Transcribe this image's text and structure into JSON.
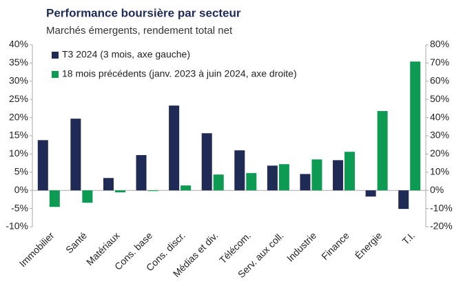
{
  "chart_data": {
    "type": "bar",
    "title": "Performance boursière par secteur",
    "subtitle": "Marchés émergents, rendement total net",
    "categories": [
      "Immobilier",
      "Santé",
      "Matériaux",
      "Cons. base",
      "Cons. discr.",
      "Médias et div.",
      "Télécom.",
      "Serv. aux coll.",
      "Industrie",
      "Finance",
      "Énergie",
      "T.I."
    ],
    "series": [
      {
        "name": "T3 2024 (3 mois, axe gauche)",
        "color": "#1f2a55",
        "axis": "y",
        "values": [
          13.8,
          19.7,
          3.4,
          9.7,
          23.3,
          15.7,
          11.0,
          6.8,
          4.5,
          8.3,
          -1.7,
          -5.1
        ]
      },
      {
        "name": "18 mois précédents (janv. 2023 à juin 2024, axe droite)",
        "color": "#0d9a52",
        "axis": "y2",
        "values": [
          -9.1,
          -6.8,
          -1.1,
          -0.4,
          2.7,
          8.7,
          9.5,
          14.4,
          17.0,
          21.2,
          43.6,
          70.8
        ]
      }
    ],
    "ylim": [
      -10,
      40
    ],
    "yticks": [
      {
        "value": -10,
        "label": "-10%"
      },
      {
        "value": -5,
        "label": "-5%"
      },
      {
        "value": 0,
        "label": "0%"
      },
      {
        "value": 5,
        "label": "5%"
      },
      {
        "value": 10,
        "label": "10%"
      },
      {
        "value": 15,
        "label": "15%"
      },
      {
        "value": 20,
        "label": "20%"
      },
      {
        "value": 25,
        "label": "25%"
      },
      {
        "value": 30,
        "label": "30%"
      },
      {
        "value": 35,
        "label": "35%"
      },
      {
        "value": 40,
        "label": "40%"
      }
    ],
    "y2lim": [
      -20,
      80
    ],
    "y2ticks": [
      {
        "value": -20,
        "label": "-20%"
      },
      {
        "value": -10,
        "label": "-10%"
      },
      {
        "value": 0,
        "label": "0%"
      },
      {
        "value": 10,
        "label": "10%"
      },
      {
        "value": 20,
        "label": "20%"
      },
      {
        "value": 30,
        "label": "30%"
      },
      {
        "value": 40,
        "label": "40%"
      },
      {
        "value": 50,
        "label": "50%"
      },
      {
        "value": 60,
        "label": "60%"
      },
      {
        "value": 70,
        "label": "70%"
      },
      {
        "value": 80,
        "label": "80%"
      }
    ],
    "legend": "top-left",
    "grid": false
  }
}
